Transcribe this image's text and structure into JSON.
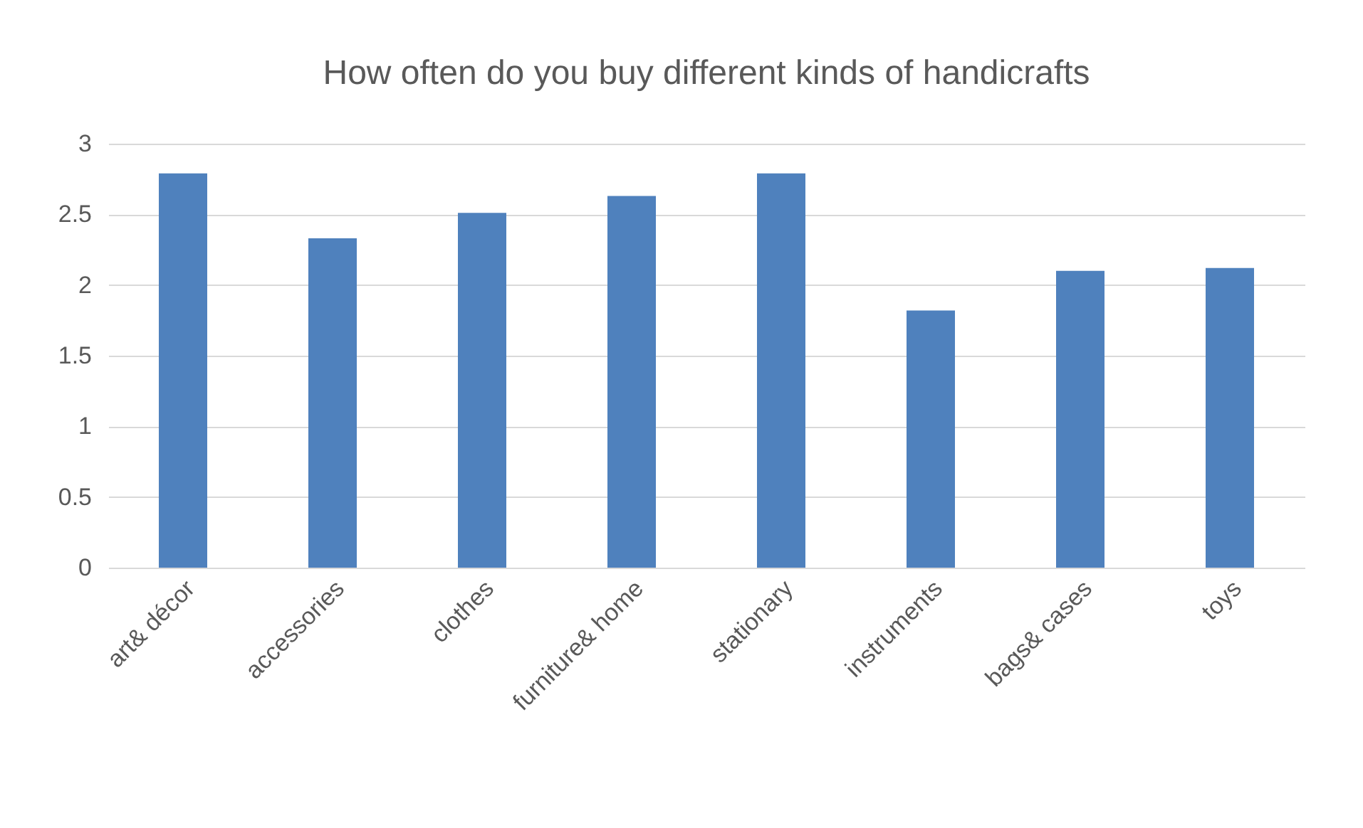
{
  "chart_data": {
    "type": "bar",
    "title": "How often do you buy different kinds of handicrafts",
    "categories": [
      "art& décor",
      "accessories",
      "clothes",
      "furniture& home",
      "stationary",
      "instruments",
      "bags& cases",
      "toys"
    ],
    "values": [
      2.79,
      2.33,
      2.51,
      2.63,
      2.79,
      1.82,
      2.1,
      2.12
    ],
    "color": "#4f81bd",
    "ylim": [
      0,
      3
    ],
    "yticks": [
      0,
      0.5,
      1,
      1.5,
      2,
      2.5,
      3
    ],
    "grid": "y"
  }
}
